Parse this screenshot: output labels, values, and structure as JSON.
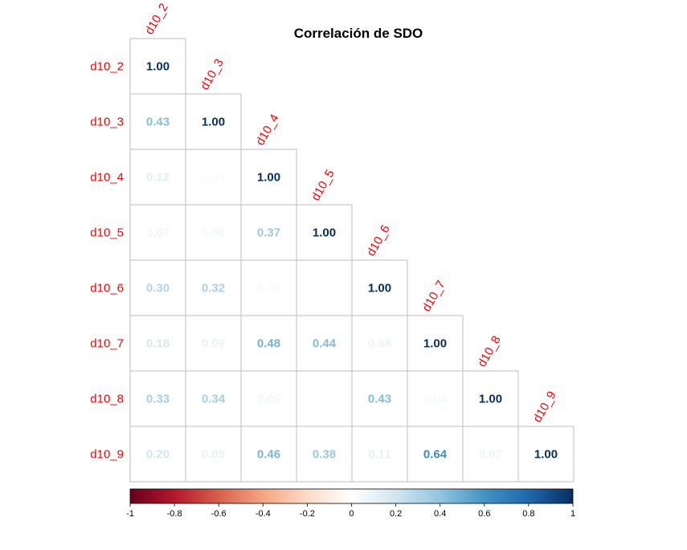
{
  "chart_data": {
    "type": "heatmap",
    "title": "Correlación de SDO",
    "variables": [
      "d10_2",
      "d10_3",
      "d10_4",
      "d10_5",
      "d10_6",
      "d10_7",
      "d10_8",
      "d10_9"
    ],
    "layout": "lower-triangle",
    "matrix": [
      [
        1.0
      ],
      [
        0.43,
        1.0
      ],
      [
        0.12,
        0.03,
        1.0
      ],
      [
        0.07,
        0.06,
        0.37,
        1.0
      ],
      [
        0.3,
        0.32,
        0.03,
        null,
        1.0
      ],
      [
        0.18,
        0.09,
        0.48,
        0.44,
        0.08,
        1.0
      ],
      [
        0.33,
        0.34,
        0.06,
        null,
        0.43,
        0.05,
        1.0
      ],
      [
        0.2,
        0.09,
        0.46,
        0.38,
        0.11,
        0.64,
        0.07,
        1.0
      ]
    ],
    "colorbar": {
      "range": [
        -1,
        1
      ],
      "ticks": [
        "-1",
        "-0.8",
        "-0.6",
        "-0.4",
        "-0.2",
        "0",
        "0.2",
        "0.4",
        "0.6",
        "0.8",
        "1"
      ],
      "colors": [
        "#67001f",
        "#b2182b",
        "#d6604d",
        "#f4a582",
        "#fddbc7",
        "#ffffff",
        "#d1e5f0",
        "#92c5de",
        "#4393c3",
        "#2166ac",
        "#053061"
      ]
    },
    "label_color": "#ff0000",
    "grid": true,
    "legend": "bottom"
  }
}
